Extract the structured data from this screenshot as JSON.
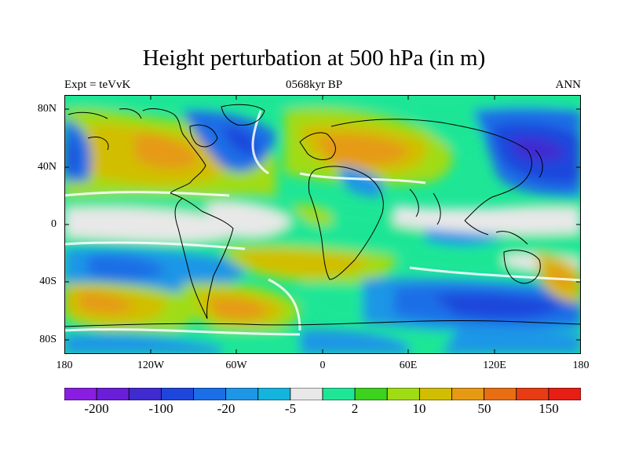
{
  "title": "Height perturbation at 500 hPa (in m)",
  "subtitle_left": "Expt = teVvK",
  "subtitle_center": "0568kyr BP",
  "subtitle_right": "ANN",
  "y_ticks": [
    "80N",
    "40N",
    "0",
    "40S",
    "80S"
  ],
  "x_ticks": [
    "180",
    "120W",
    "60W",
    "0",
    "60E",
    "120E",
    "180"
  ],
  "colorbar": {
    "colors": [
      "#8a1ee0",
      "#6a1ed8",
      "#3f2bd0",
      "#1e46dc",
      "#1a6ee6",
      "#1e96e6",
      "#14b4dc",
      "#e8e8e8",
      "#1ee696",
      "#3cd21e",
      "#a0dc14",
      "#d2be00",
      "#e69a14",
      "#e86e14",
      "#e83c14",
      "#e61e14"
    ],
    "labels": [
      "-200",
      "-100",
      "-20",
      "-5",
      "2",
      "10",
      "50",
      "150"
    ]
  }
}
